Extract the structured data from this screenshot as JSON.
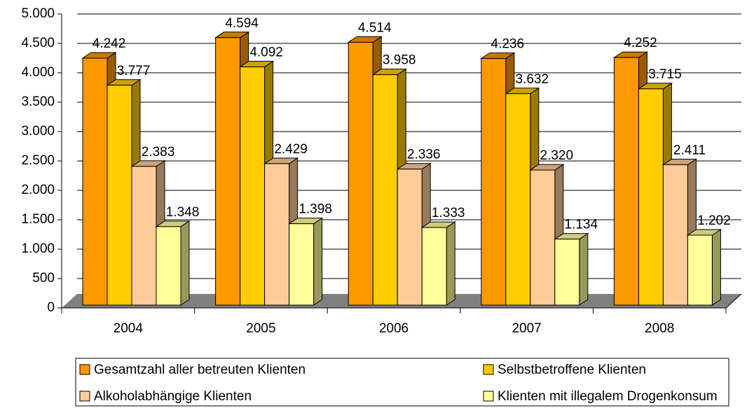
{
  "chart_data": {
    "type": "bar3d",
    "categories": [
      "2004",
      "2005",
      "2006",
      "2007",
      "2008"
    ],
    "series": [
      {
        "name": "Gesamtzahl aller betreuten Klienten",
        "color": "#ff9900",
        "values": [
          4242,
          4594,
          4514,
          4236,
          4252
        ],
        "value_labels": [
          "4.242",
          "4.594",
          "4.514",
          "4.236",
          "4.252"
        ]
      },
      {
        "name": "Selbstbetroffene Klienten",
        "color": "#ffcc00",
        "values": [
          3777,
          4092,
          3958,
          3632,
          3715
        ],
        "value_labels": [
          "3.777",
          "4.092",
          "3.958",
          "3.632",
          "3.715"
        ]
      },
      {
        "name": "Alkoholabhängige Klienten",
        "color": "#ffcc99",
        "values": [
          2383,
          2429,
          2336,
          2320,
          2411
        ],
        "value_labels": [
          "2.383",
          "2.429",
          "2.336",
          "2.320",
          "2.411"
        ]
      },
      {
        "name": "Klienten mit illegalem Drogenkonsum",
        "color": "#ffff99",
        "values": [
          1348,
          1398,
          1333,
          1134,
          1202
        ],
        "value_labels": [
          "1.348",
          "1.398",
          "1.333",
          "1.134",
          "1.202"
        ]
      }
    ],
    "ylim": [
      0,
      5000
    ],
    "yticks": [
      0,
      500,
      {
        "value": 1000,
        "label": "1.000"
      },
      {
        "value": 1500,
        "label": "1.500"
      },
      {
        "value": 2000,
        "label": "2.000"
      },
      {
        "value": 2500,
        "label": "2.500"
      },
      {
        "value": 3000,
        "label": "3.000"
      },
      {
        "value": 3500,
        "label": "3.500"
      },
      {
        "value": 4000,
        "label": "4.000"
      },
      {
        "value": 4500,
        "label": "4.500"
      },
      {
        "value": 5000,
        "label": "5.000"
      }
    ],
    "grid": true,
    "legend": "bottom"
  }
}
